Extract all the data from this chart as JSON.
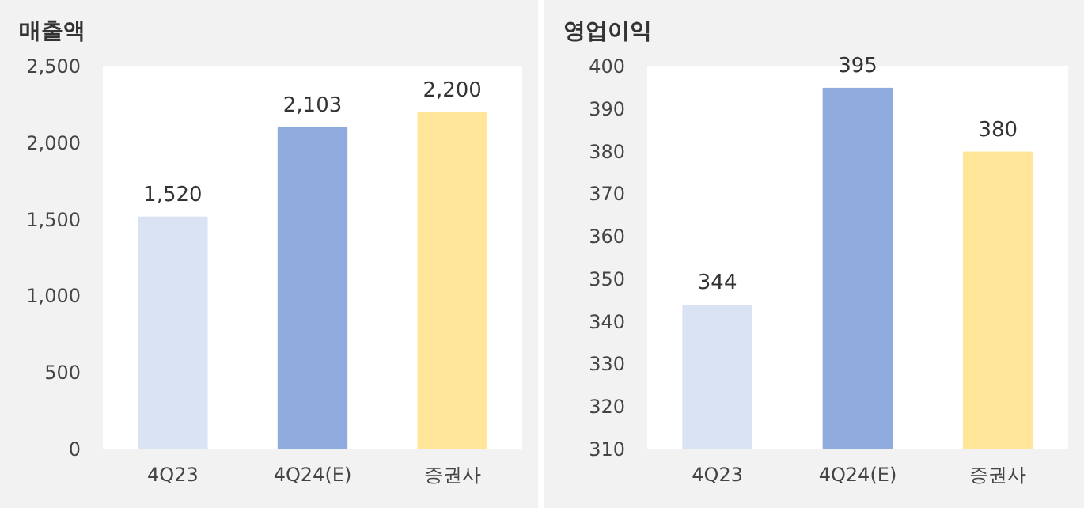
{
  "chart_data": [
    {
      "type": "bar",
      "title": "매출액",
      "categories": [
        "4Q23",
        "4Q24(E)",
        "증권사"
      ],
      "values": [
        1520,
        2103,
        2200
      ],
      "colors": [
        "#dae3f3",
        "#8faadc",
        "#ffe699"
      ],
      "value_labels": [
        "1,520",
        "2,103",
        "2,200"
      ],
      "ylim": [
        0,
        2500
      ],
      "yticks": [
        0,
        500,
        {
          "value": 1000,
          "label": "1,000"
        },
        {
          "value": 1500,
          "label": "1,500"
        },
        {
          "value": 2000,
          "label": "2,000"
        },
        {
          "value": 2500,
          "label": "2,500"
        }
      ],
      "grid": false
    },
    {
      "type": "bar",
      "title": "영업이익",
      "categories": [
        "4Q23",
        "4Q24(E)",
        "증권사"
      ],
      "values": [
        344,
        395,
        380
      ],
      "colors": [
        "#dae3f3",
        "#8faadc",
        "#ffe699"
      ],
      "data_labels": true,
      "ylim": [
        310,
        400
      ],
      "yticks": [
        310,
        320,
        330,
        340,
        350,
        360,
        370,
        380,
        390,
        400
      ],
      "grid": false
    }
  ]
}
